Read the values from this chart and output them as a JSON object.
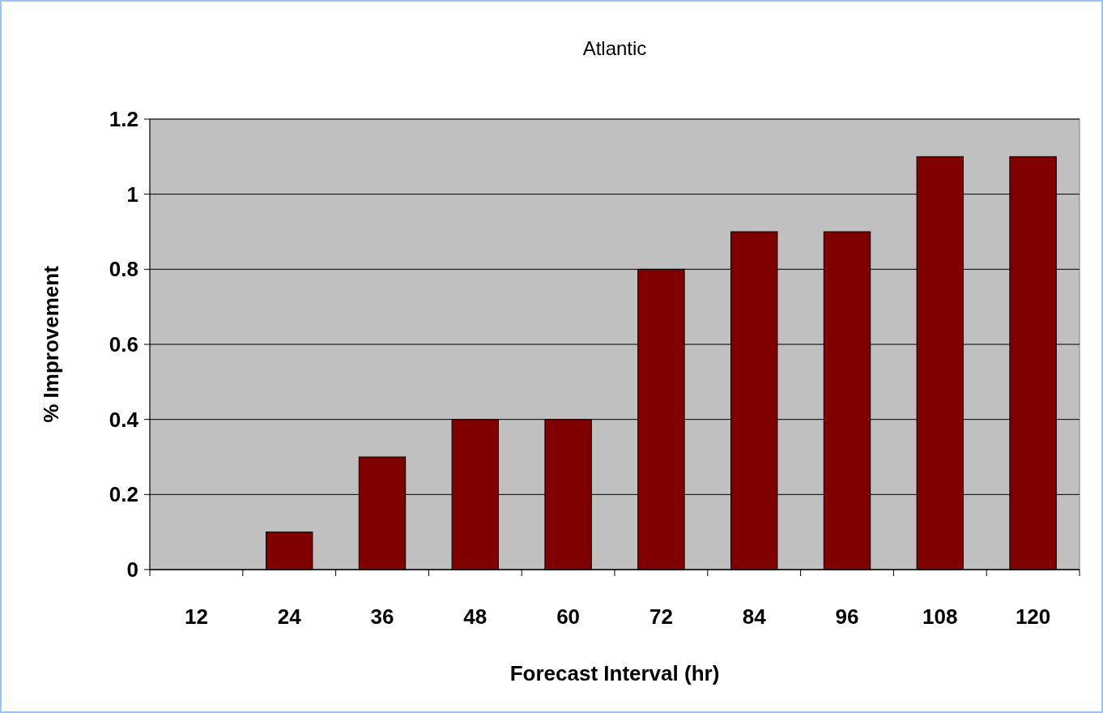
{
  "chart_data": {
    "type": "bar",
    "title": "Atlantic",
    "xlabel": "Forecast Interval (hr)",
    "ylabel": "% Improvement",
    "categories": [
      "12",
      "24",
      "36",
      "48",
      "60",
      "72",
      "84",
      "96",
      "108",
      "120"
    ],
    "values": [
      0,
      0.1,
      0.3,
      0.4,
      0.4,
      0.8,
      0.9,
      0.9,
      1.1,
      1.1
    ],
    "color": "#800000",
    "ylim": [
      0,
      1.2
    ],
    "yticks": [
      0,
      0.2,
      0.4,
      0.6,
      0.8,
      1,
      1.2
    ],
    "grid": "y"
  }
}
